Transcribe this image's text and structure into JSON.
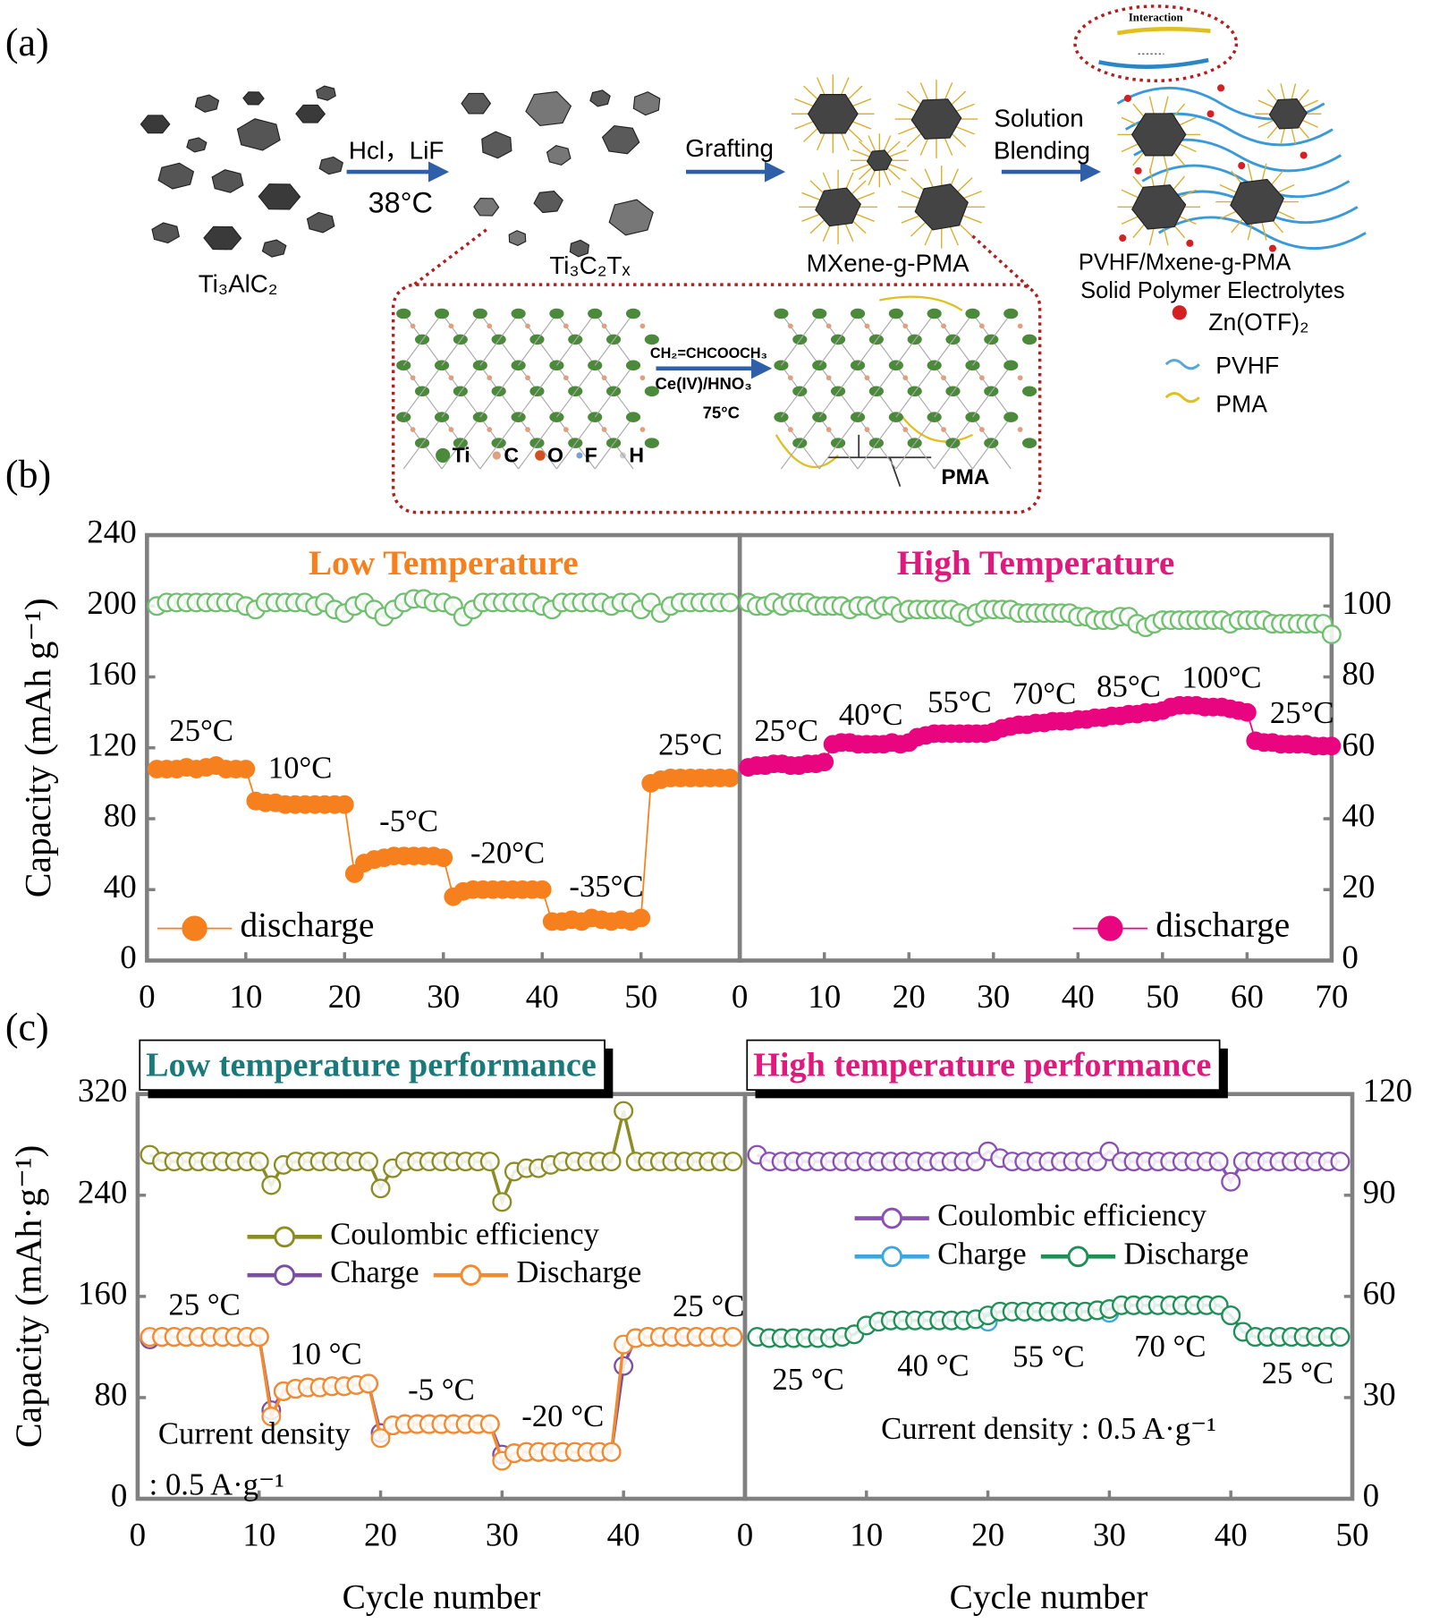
{
  "labels": {
    "a": "(a)",
    "b": "(b)",
    "c": "(c)"
  },
  "panel_a": {
    "precursor": "Ti₃AlC₂",
    "etch": "Hcl，LiF",
    "etch_temp": "38°C",
    "mxene": "Ti₃C₂Tₓ",
    "step2": "Grafting",
    "grafted": "MXene-g-PMA",
    "step3_1": "Solution",
    "step3_2": "Blending",
    "product_1": "PVHF/Mxene-g-PMA",
    "product_2": "Solid Polymer Electrolytes",
    "interaction": "Interaction",
    "legend": [
      "Zn(OTF)₂",
      "PVHF",
      "PMA"
    ],
    "monomer": "CH₂=CHCOOCH₃",
    "initiator": "Ce(IV)/HNO₃",
    "graft_temp": "75°C",
    "atoms": [
      "Ti",
      "C",
      "O",
      "F",
      "H"
    ],
    "chain": "PMA"
  },
  "chart_data": [
    {
      "type": "line",
      "title": "Low Temperature",
      "title_color": "#f7801e",
      "title_box": false,
      "ylabel": "Capacity (mAh g⁻¹)",
      "xlim": [
        0,
        60
      ],
      "xticks": [
        0,
        10,
        20,
        30,
        40,
        50
      ],
      "ylim": [
        0,
        240
      ],
      "yticks": [
        0,
        40,
        80,
        120,
        160,
        200,
        240
      ],
      "y2lim": [
        0,
        120
      ],
      "legend": "lower left",
      "x": [
        1,
        2,
        3,
        4,
        5,
        6,
        7,
        8,
        9,
        10,
        11,
        12,
        13,
        14,
        15,
        16,
        17,
        18,
        19,
        20,
        21,
        22,
        23,
        24,
        25,
        26,
        27,
        28,
        29,
        30,
        31,
        32,
        33,
        34,
        35,
        36,
        37,
        38,
        39,
        40,
        41,
        42,
        43,
        44,
        45,
        46,
        47,
        48,
        49,
        50,
        51,
        52,
        53,
        54,
        55,
        56,
        57,
        58,
        59
      ],
      "series": [
        {
          "color": "#6fbf6f",
          "marker": "open",
          "axis": "y2",
          "values": [
            100,
            101,
            101,
            101,
            101,
            101,
            101,
            101,
            101,
            100,
            99,
            101,
            101,
            101,
            101,
            101,
            100,
            101,
            99,
            98,
            100,
            101,
            99,
            97,
            99,
            101,
            102,
            102,
            101,
            101,
            100,
            97,
            99,
            101,
            101,
            101,
            101,
            101,
            101,
            100,
            99,
            101,
            101,
            101,
            101,
            101,
            100,
            101,
            101,
            99,
            101,
            98,
            100,
            101,
            101,
            101,
            101,
            101,
            101
          ]
        },
        {
          "name": "discharge",
          "color": "#f7801e",
          "marker": "filled",
          "values": [
            108,
            108,
            108,
            109,
            108,
            109,
            110,
            108,
            108,
            108,
            90,
            89,
            89,
            88,
            88,
            88,
            88,
            88,
            88,
            88,
            49,
            55,
            57,
            58,
            59,
            59,
            59,
            59,
            59,
            58,
            36,
            39,
            40,
            40,
            40,
            40,
            40,
            40,
            40,
            40,
            22,
            22,
            23,
            22,
            24,
            23,
            22,
            23,
            22,
            24,
            100,
            102,
            103,
            103,
            103,
            103,
            103,
            103,
            103
          ]
        }
      ],
      "annotations": [
        {
          "text": "25°C",
          "x": 5.5,
          "y": 128
        },
        {
          "text": "10°C",
          "x": 15.5,
          "y": 107
        },
        {
          "text": "-5°C",
          "x": 26.5,
          "y": 77
        },
        {
          "text": "-20°C",
          "x": 36.5,
          "y": 59
        },
        {
          "text": "-35°C",
          "x": 46.5,
          "y": 40
        },
        {
          "text": "25°C",
          "x": 55,
          "y": 120
        }
      ]
    },
    {
      "type": "line",
      "title": "High Temperature",
      "title_color": "#e0197d",
      "title_box": false,
      "xlim": [
        0,
        70
      ],
      "xticks": [
        0,
        10,
        20,
        30,
        40,
        50,
        60,
        70
      ],
      "ylim": [
        0,
        240
      ],
      "y2lim": [
        0,
        120
      ],
      "y2ticks": [
        0,
        20,
        40,
        60,
        80,
        100
      ],
      "legend": "lower right",
      "x": [
        1,
        2,
        3,
        4,
        5,
        6,
        7,
        8,
        9,
        10,
        11,
        12,
        13,
        14,
        15,
        16,
        17,
        18,
        19,
        20,
        21,
        22,
        23,
        24,
        25,
        26,
        27,
        28,
        29,
        30,
        31,
        32,
        33,
        34,
        35,
        36,
        37,
        38,
        39,
        40,
        41,
        42,
        43,
        44,
        45,
        46,
        47,
        48,
        49,
        50,
        51,
        52,
        53,
        54,
        55,
        56,
        57,
        58,
        59,
        60,
        61,
        62,
        63,
        64,
        65,
        66,
        67,
        68,
        69,
        70
      ],
      "series": [
        {
          "color": "#6fbf6f",
          "marker": "open",
          "axis": "y2",
          "values": [
            101,
            100,
            100,
            101,
            100,
            101,
            101,
            101,
            100,
            100,
            100,
            100,
            99,
            100,
            100,
            99,
            100,
            100,
            98,
            99,
            99,
            99,
            99,
            99,
            99,
            98,
            97,
            98,
            99,
            99,
            99,
            99,
            98,
            98,
            98,
            98,
            98,
            98,
            98,
            97,
            97,
            96,
            96,
            96,
            97,
            97,
            95,
            94,
            95,
            96,
            96,
            96,
            96,
            96,
            96,
            96,
            96,
            95,
            96,
            96,
            96,
            96,
            95,
            95,
            95,
            95,
            95,
            95,
            95,
            92
          ]
        },
        {
          "name": "discharge",
          "color": "#e8057f",
          "marker": "filled",
          "values": [
            109,
            110,
            110,
            111,
            111,
            110,
            110,
            111,
            111,
            112,
            122,
            123,
            123,
            122,
            122,
            122,
            122,
            123,
            122,
            123,
            126,
            127,
            128,
            128,
            128,
            128,
            128,
            128,
            128,
            129,
            131,
            132,
            133,
            133,
            134,
            134,
            135,
            135,
            135,
            136,
            136,
            137,
            137,
            138,
            138,
            139,
            139,
            140,
            140,
            141,
            143,
            144,
            144,
            144,
            143,
            143,
            143,
            142,
            141,
            140,
            124,
            123,
            123,
            122,
            122,
            122,
            122,
            121,
            121,
            121
          ]
        }
      ],
      "annotations": [
        {
          "text": "25°C",
          "x": 5.5,
          "y": 128
        },
        {
          "text": "40°C",
          "x": 15.5,
          "y": 137
        },
        {
          "text": "55°C",
          "x": 26,
          "y": 144
        },
        {
          "text": "70°C",
          "x": 36,
          "y": 149
        },
        {
          "text": "85°C",
          "x": 46,
          "y": 153
        },
        {
          "text": "100°C",
          "x": 57,
          "y": 158
        },
        {
          "text": "25°C",
          "x": 66.5,
          "y": 138
        }
      ]
    },
    {
      "type": "line",
      "title": "Low temperature performance",
      "title_color": "#1a7a7a",
      "title_box": true,
      "ylabel": "Capacity (mAh·g⁻¹)",
      "xlabel": "Cycle number",
      "xlim": [
        0,
        50
      ],
      "xticks": [
        0,
        10,
        20,
        30,
        40
      ],
      "ylim": [
        0,
        320
      ],
      "yticks": [
        0,
        80,
        160,
        240,
        320
      ],
      "y2lim": [
        0,
        120
      ],
      "legend": "upper center",
      "x": [
        1,
        2,
        3,
        4,
        5,
        6,
        7,
        8,
        9,
        10,
        11,
        12,
        13,
        14,
        15,
        16,
        17,
        18,
        19,
        20,
        21,
        22,
        23,
        24,
        25,
        26,
        27,
        28,
        29,
        30,
        31,
        32,
        33,
        34,
        35,
        36,
        37,
        38,
        39,
        40,
        41,
        42,
        43,
        44,
        45,
        46,
        47,
        48,
        49
      ],
      "series": [
        {
          "name": "Coulombic efficiency",
          "color": "#8c8c25",
          "marker": "open",
          "axis": "y2",
          "values": [
            102,
            100,
            100,
            100,
            100,
            100,
            100,
            100,
            100,
            100,
            93,
            99,
            100,
            100,
            100,
            100,
            100,
            100,
            100,
            92,
            98,
            100,
            100,
            100,
            100,
            100,
            100,
            100,
            100,
            88,
            97,
            98,
            98,
            99,
            100,
            100,
            100,
            100,
            100,
            115,
            100,
            100,
            100,
            100,
            100,
            100,
            100,
            100,
            100
          ]
        },
        {
          "name": "Charge",
          "color": "#7b4ea3",
          "marker": "open",
          "values": [
            126,
            128,
            128,
            128,
            128,
            128,
            128,
            128,
            128,
            128,
            70,
            85,
            87,
            88,
            88,
            89,
            89,
            90,
            91,
            52,
            58,
            59,
            59,
            59,
            59,
            59,
            59,
            59,
            59,
            35,
            36,
            37,
            37,
            37,
            37,
            37,
            37,
            37,
            37,
            105,
            127,
            128,
            128,
            128,
            128,
            128,
            128,
            128,
            128
          ]
        },
        {
          "name": "Discharge",
          "color": "#f28a2e",
          "marker": "open",
          "values": [
            128,
            128,
            128,
            128,
            128,
            128,
            128,
            128,
            128,
            128,
            65,
            85,
            87,
            88,
            88,
            89,
            89,
            90,
            91,
            48,
            58,
            59,
            59,
            59,
            59,
            59,
            59,
            59,
            59,
            30,
            36,
            37,
            37,
            37,
            37,
            37,
            37,
            37,
            37,
            122,
            127,
            128,
            128,
            128,
            128,
            128,
            128,
            128,
            128
          ]
        }
      ],
      "annotations": [
        {
          "text": "25 °C",
          "x": 5.5,
          "y": 151
        },
        {
          "text": "10 °C",
          "x": 15.5,
          "y": 112
        },
        {
          "text": "-5 °C",
          "x": 25,
          "y": 84
        },
        {
          "text": "-20 °C",
          "x": 35,
          "y": 63
        },
        {
          "text": "25 °C",
          "x": 47,
          "y": 150
        },
        {
          "text": "Current density",
          "x": 9.6,
          "y": 49
        },
        {
          "text": ": 0.5 A·g⁻¹",
          "x": 6.5,
          "y": 9
        }
      ]
    },
    {
      "type": "line",
      "title": "High temperature performance",
      "title_color": "#e0197d",
      "title_box": true,
      "xlabel": "Cycle number",
      "xlim": [
        0,
        50
      ],
      "xticks": [
        0,
        10,
        20,
        30,
        40,
        50
      ],
      "ylim": [
        0,
        320
      ],
      "y2lim": [
        0,
        120
      ],
      "y2ticks": [
        0,
        30,
        60,
        90,
        120
      ],
      "legend": "upper center",
      "x": [
        1,
        2,
        3,
        4,
        5,
        6,
        7,
        8,
        9,
        10,
        11,
        12,
        13,
        14,
        15,
        16,
        17,
        18,
        19,
        20,
        21,
        22,
        23,
        24,
        25,
        26,
        27,
        28,
        29,
        30,
        31,
        32,
        33,
        34,
        35,
        36,
        37,
        38,
        39,
        40,
        41,
        42,
        43,
        44,
        45,
        46,
        47,
        48,
        49
      ],
      "series": [
        {
          "name": "Coulombic efficiency",
          "color": "#8a4fb5",
          "marker": "open",
          "axis": "y2",
          "values": [
            102,
            100,
            100,
            100,
            100,
            100,
            100,
            100,
            100,
            100,
            100,
            100,
            100,
            100,
            100,
            100,
            100,
            100,
            100,
            103,
            101,
            100,
            100,
            100,
            100,
            100,
            100,
            100,
            100,
            103,
            100,
            100,
            100,
            100,
            100,
            100,
            100,
            100,
            100,
            94,
            100,
            100,
            100,
            100,
            100,
            100,
            100,
            100,
            100
          ]
        },
        {
          "name": "Charge",
          "color": "#3ea6dc",
          "marker": "open",
          "values": [
            128,
            127,
            127,
            127,
            127,
            127,
            127,
            128,
            130,
            137,
            140,
            141,
            141,
            141,
            141,
            141,
            141,
            141,
            142,
            140,
            148,
            148,
            148,
            148,
            148,
            148,
            148,
            148,
            149,
            147,
            153,
            153,
            153,
            153,
            153,
            153,
            153,
            153,
            153,
            145,
            132,
            128,
            128,
            128,
            128,
            128,
            128,
            128,
            128
          ]
        },
        {
          "name": "Discharge",
          "color": "#1f8f55",
          "marker": "open",
          "values": [
            128,
            127,
            127,
            127,
            127,
            127,
            127,
            128,
            130,
            137,
            140,
            141,
            141,
            141,
            141,
            141,
            141,
            141,
            142,
            145,
            148,
            148,
            148,
            148,
            148,
            148,
            148,
            148,
            149,
            150,
            153,
            153,
            153,
            153,
            153,
            153,
            153,
            153,
            153,
            145,
            132,
            128,
            128,
            128,
            128,
            128,
            128,
            128,
            128
          ]
        }
      ],
      "annotations": [
        {
          "text": "25 °C",
          "x": 5.2,
          "y": 92
        },
        {
          "text": "40 °C",
          "x": 15.5,
          "y": 103
        },
        {
          "text": "55 °C",
          "x": 25,
          "y": 110
        },
        {
          "text": "70 °C",
          "x": 35,
          "y": 118
        },
        {
          "text": "25 °C",
          "x": 45.5,
          "y": 97
        },
        {
          "text": "Current density : 0.5 A·g⁻¹",
          "x": 25,
          "y": 53
        }
      ]
    }
  ]
}
